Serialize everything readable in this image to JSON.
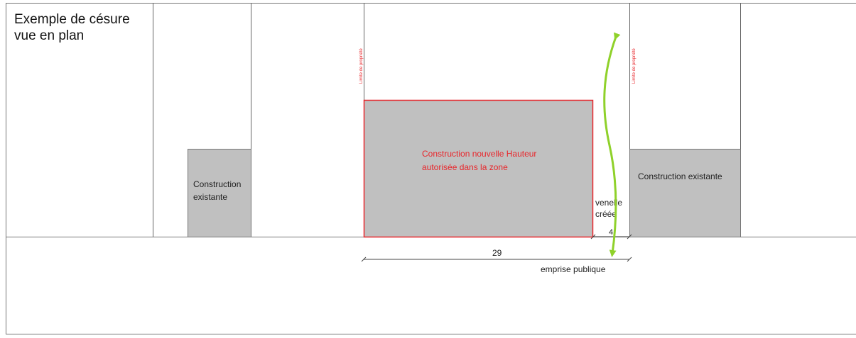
{
  "title": {
    "line1": "Exemple de césure",
    "line2": "vue en plan"
  },
  "labels": {
    "left_building_line1": "Construction",
    "left_building_line2": "existante",
    "new_building_line1": "Construction nouvelle Hauteur",
    "new_building_line2": "autorisée dans la zone",
    "right_building": "Construction existante",
    "venelle_line1": "venelle",
    "venelle_line2": "créée",
    "property_limit_left": "Limite de propriété",
    "property_limit_right": "Limite de propriété",
    "public_space": "emprise publique"
  },
  "dimensions": {
    "building_width": "29",
    "venelle_width": "4"
  },
  "colors": {
    "building_fill": "#c0c0c0",
    "new_building_border": "#e8262b",
    "new_building_text": "#e8262b",
    "property_limit_text": "#e8262b",
    "arrow": "#8fd12a",
    "lines": "#555555"
  }
}
